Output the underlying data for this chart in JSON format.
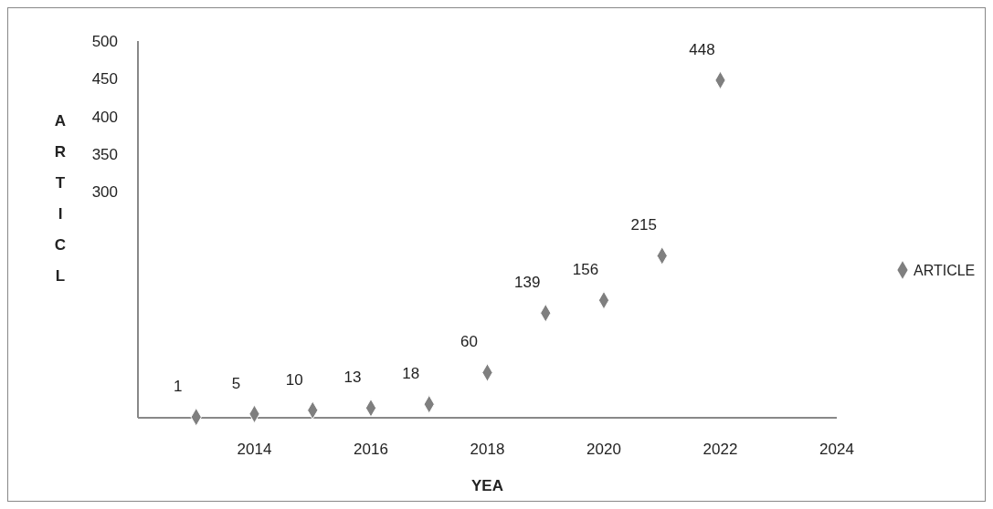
{
  "chart_data": {
    "type": "scatter",
    "xlabel": "YEA",
    "ylabel": "ARTICL",
    "x": [
      2013,
      2014,
      2015,
      2016,
      2017,
      2018,
      2019,
      2020,
      2021,
      2022
    ],
    "series": [
      {
        "name": "ARTICLE",
        "color": "#7f7f7f",
        "values": [
          1,
          5,
          10,
          13,
          18,
          60,
          139,
          156,
          215,
          448
        ]
      }
    ],
    "xlim": [
      2012,
      2024
    ],
    "xticks": [
      2014,
      2016,
      2018,
      2020,
      2022,
      2024
    ],
    "ylim": [
      0,
      500
    ],
    "yticks": [
      300,
      350,
      400,
      450,
      500
    ],
    "marker": "diamond",
    "data_labels": true,
    "legend": "right",
    "grid": false
  }
}
